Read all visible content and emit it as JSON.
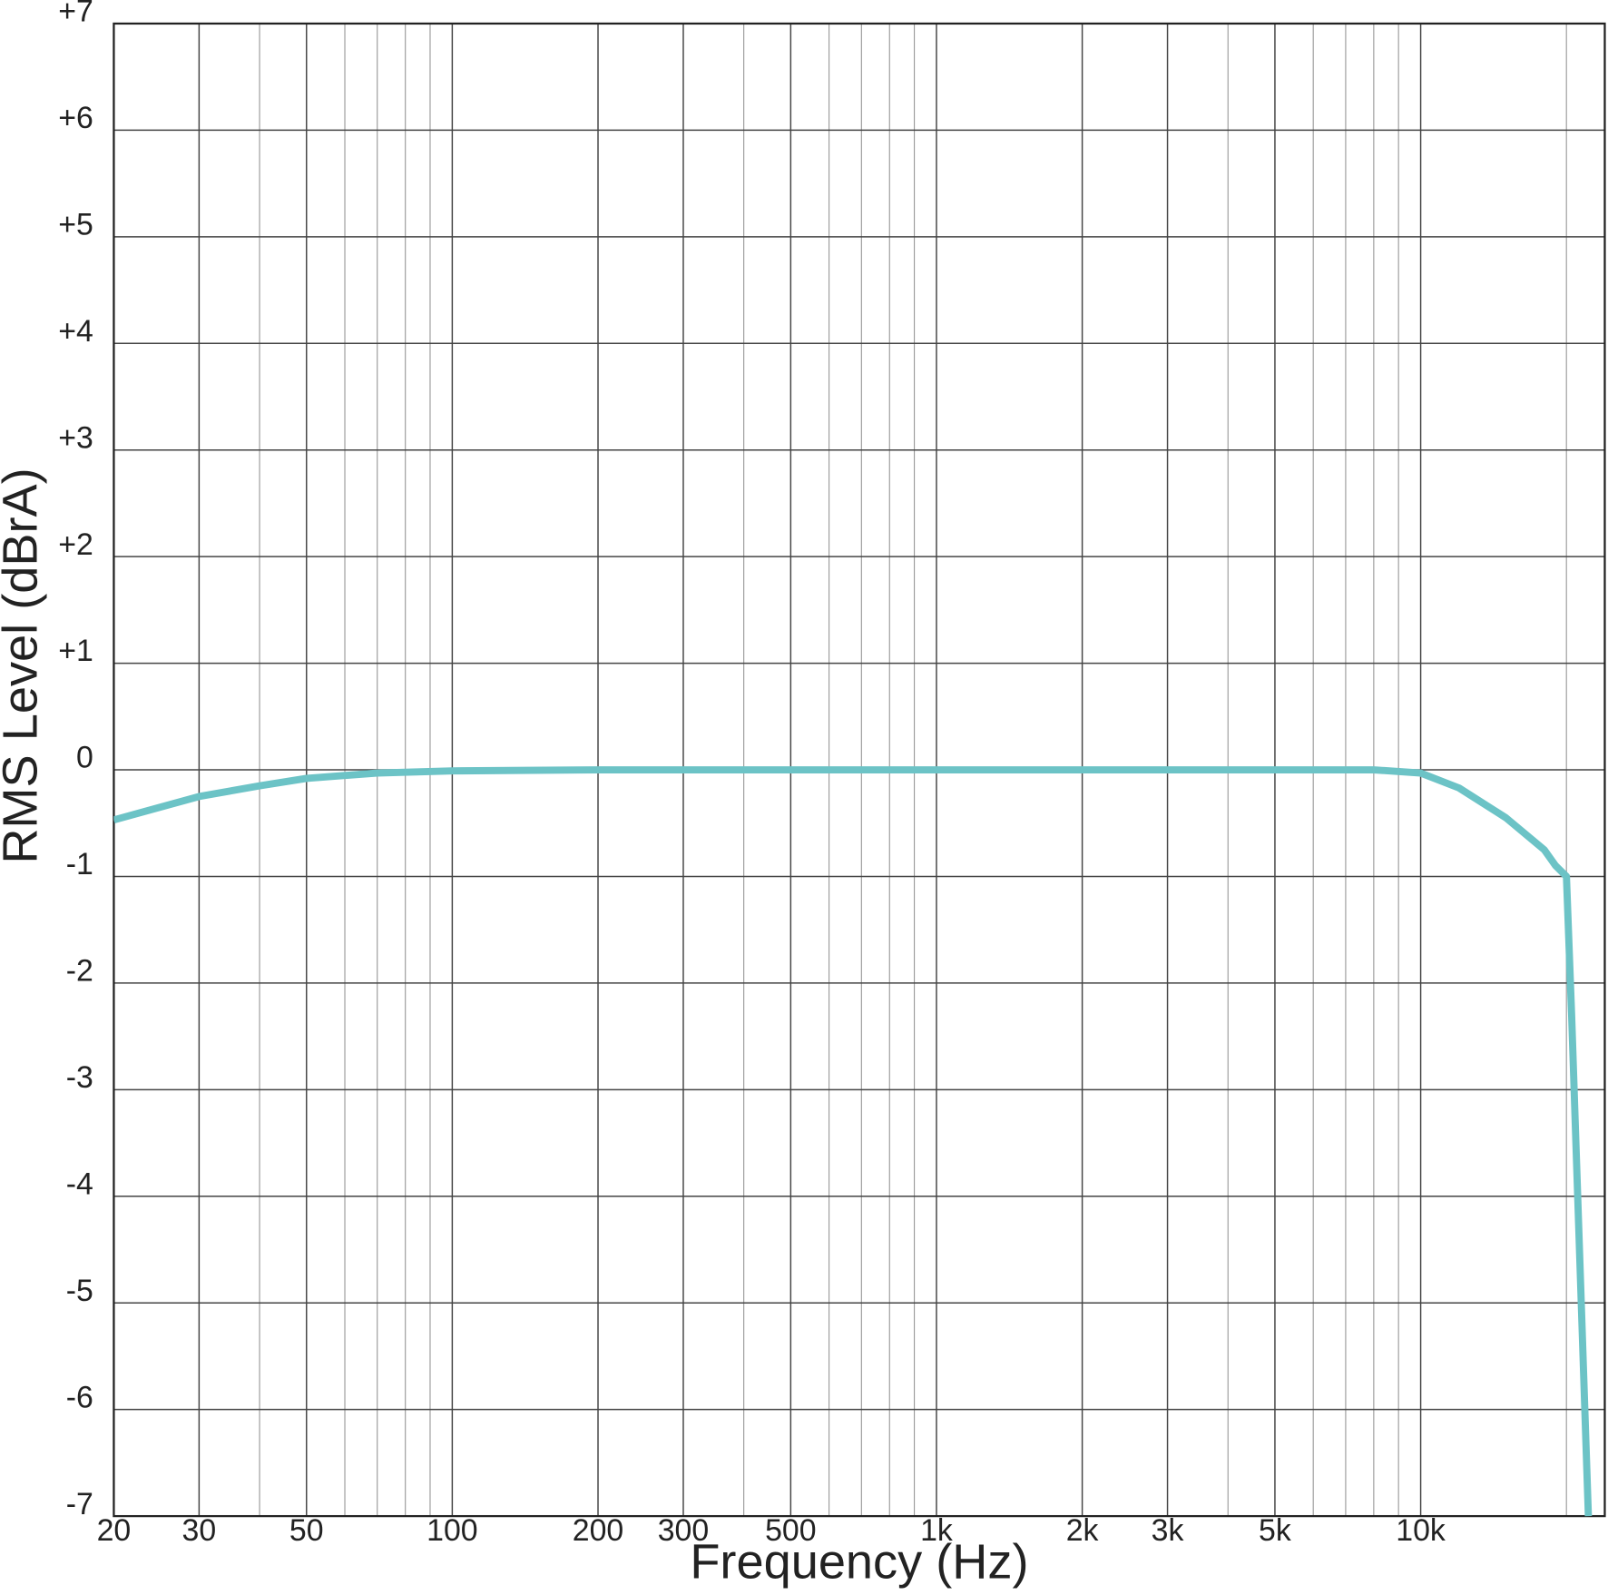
{
  "chart_data": {
    "type": "line",
    "xlabel": "Frequency (Hz)",
    "ylabel": "RMS Level (dBrA)",
    "xscale": "log",
    "xlim": [
      20,
      24000
    ],
    "ylim": [
      -7,
      7
    ],
    "grid": true,
    "xticks": [
      20,
      30,
      50,
      100,
      200,
      300,
      500,
      {
        "value": 1000,
        "label": "1k"
      },
      {
        "value": 2000,
        "label": "2k"
      },
      {
        "value": 3000,
        "label": "3k"
      },
      {
        "value": 5000,
        "label": "5k"
      },
      {
        "value": 10000,
        "label": "10k"
      }
    ],
    "xminorticks": [
      40,
      60,
      70,
      80,
      90,
      400,
      600,
      700,
      800,
      900,
      4000,
      6000,
      7000,
      8000,
      9000,
      20000
    ],
    "yticks": [
      {
        "value": 7,
        "label": "+7"
      },
      {
        "value": 6,
        "label": "+6"
      },
      {
        "value": 5,
        "label": "+5"
      },
      {
        "value": 4,
        "label": "+4"
      },
      {
        "value": 3,
        "label": "+3"
      },
      {
        "value": 2,
        "label": "+2"
      },
      {
        "value": 1,
        "label": "+1"
      },
      0,
      -1,
      -2,
      -3,
      -4,
      -5,
      -6,
      -7
    ],
    "series": [
      {
        "color": "#6cc3c6",
        "x": [
          20,
          30,
          40,
          50,
          70,
          100,
          200,
          1000,
          5000,
          8000,
          10000,
          12000,
          15000,
          18000,
          19000,
          20000,
          20500,
          22200
        ],
        "values": [
          -0.47,
          -0.25,
          -0.15,
          -0.08,
          -0.03,
          -0.01,
          0,
          0,
          0,
          0,
          -0.03,
          -0.17,
          -0.45,
          -0.75,
          -0.9,
          -1.0,
          -2.3,
          -7
        ]
      }
    ]
  }
}
